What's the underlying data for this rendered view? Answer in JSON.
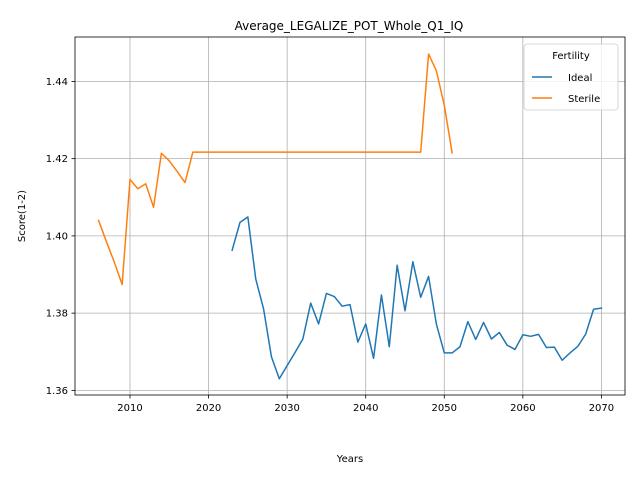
{
  "chart_data": {
    "type": "line",
    "title": "Average_LEGALIZE_POT_Whole_Q1_IQ",
    "xlabel": "Years",
    "ylabel": "Score(1-2)",
    "xlim": [
      2003,
      2073
    ],
    "ylim": [
      1.3588,
      1.4515
    ],
    "xticks": [
      2010,
      2020,
      2030,
      2040,
      2050,
      2060,
      2070
    ],
    "yticks": [
      1.36,
      1.38,
      1.4,
      1.42,
      1.44
    ],
    "ytick_labels": [
      "1.36",
      "1.38",
      "1.40",
      "1.42",
      "1.44"
    ],
    "grid": true,
    "legend": {
      "title": "Fertility",
      "placement": "top-right"
    },
    "series": [
      {
        "name": "Ideal",
        "color": "#1f77b4",
        "x": [
          2023,
          2024,
          2025,
          2026,
          2027,
          2028,
          2029,
          2030,
          2031,
          2032,
          2033,
          2034,
          2035,
          2036,
          2037,
          2038,
          2039,
          2040,
          2041,
          2042,
          2043,
          2044,
          2045,
          2046,
          2047,
          2048,
          2049,
          2050,
          2051,
          2052,
          2053,
          2054,
          2055,
          2056,
          2057,
          2058,
          2059,
          2060,
          2061,
          2062,
          2063,
          2064,
          2065,
          2066,
          2067,
          2068,
          2069,
          2070
        ],
        "values": [
          1.3963,
          1.4035,
          1.4049,
          1.3889,
          1.3811,
          1.3687,
          1.363,
          1.3664,
          1.3698,
          1.3733,
          1.3826,
          1.3772,
          1.3851,
          1.3843,
          1.3818,
          1.3822,
          1.3725,
          1.3772,
          1.3683,
          1.3847,
          1.3713,
          1.3924,
          1.3806,
          1.3933,
          1.3841,
          1.3895,
          1.3771,
          1.3697,
          1.3697,
          1.3713,
          1.3778,
          1.3732,
          1.3776,
          1.3733,
          1.375,
          1.3717,
          1.3706,
          1.3744,
          1.374,
          1.3745,
          1.3711,
          1.3712,
          1.3678,
          1.3697,
          1.3714,
          1.3746,
          1.381,
          1.3813
        ]
      },
      {
        "name": "Sterile",
        "color": "#ff7f0e",
        "x": [
          2006,
          2007,
          2008,
          2009,
          2010,
          2011,
          2012,
          2013,
          2014,
          2015,
          2016,
          2017,
          2018,
          2019,
          2020,
          2025,
          2030,
          2035,
          2040,
          2045,
          2047,
          2048,
          2049,
          2050,
          2051
        ],
        "values": [
          1.404,
          1.3985,
          1.3932,
          1.3874,
          1.4146,
          1.4122,
          1.4135,
          1.4074,
          1.4214,
          1.4194,
          1.4167,
          1.4138,
          1.4217,
          1.4217,
          1.4217,
          1.4217,
          1.4217,
          1.4217,
          1.4217,
          1.4217,
          1.4217,
          1.4471,
          1.4427,
          1.4338,
          1.4215
        ]
      }
    ]
  }
}
